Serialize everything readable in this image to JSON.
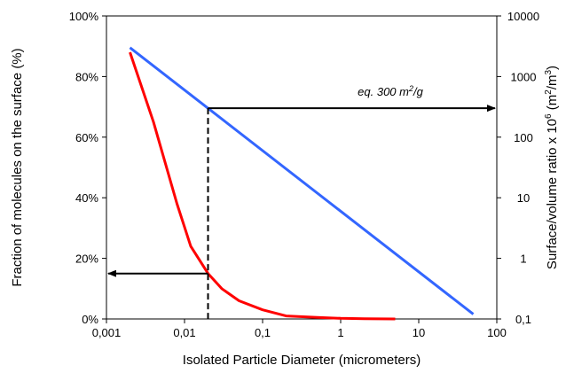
{
  "chart_data": {
    "type": "line",
    "xlabel": "Isolated Particle Diameter (micrometers)",
    "ylabel_left": "Fraction of molecules on the surface (%)",
    "ylabel_right": "Surface/volume  ratio x 10",
    "ylabel_right_sup": "6",
    "ylabel_right_unit": " (m",
    "ylabel_right_unit_sup": "2",
    "ylabel_right_unit_end": "/m",
    "ylabel_right_unit_sup2": "3",
    "ylabel_right_close": ")",
    "x_scale": "log",
    "xlim": [
      0.001,
      100
    ],
    "x_ticks": [
      "0,001",
      "0,01",
      "0,1",
      "1",
      "10",
      "100"
    ],
    "y_left_lim": [
      0,
      100
    ],
    "y_left_ticks": [
      "0%",
      "20%",
      "40%",
      "60%",
      "80%",
      "100%"
    ],
    "y_right_scale": "log",
    "y_right_lim": [
      0.1,
      10000
    ],
    "y_right_ticks": [
      "0,1",
      "1",
      "10",
      "100",
      "1000",
      "10000"
    ],
    "grid": false,
    "series": [
      {
        "axis": "left",
        "color": "#ff0000",
        "x": [
          0.002,
          0.004,
          0.008,
          0.012,
          0.02,
          0.03,
          0.05,
          0.1,
          0.2,
          0.5,
          1,
          2,
          5
        ],
        "y": [
          88,
          65,
          38,
          24,
          15,
          10,
          6,
          3,
          1,
          0.5,
          0.2,
          0.1,
          0
        ]
      },
      {
        "axis": "right",
        "color": "#3366ff",
        "x": [
          0.002,
          50
        ],
        "y": [
          3000,
          0.12
        ]
      }
    ],
    "annotations": {
      "equivalence_label": "eq. 300 m",
      "equivalence_sup": "2",
      "equivalence_end": "/g",
      "marker_x": 0.02,
      "marker_left_y": 15,
      "marker_right_y": 300
    }
  }
}
